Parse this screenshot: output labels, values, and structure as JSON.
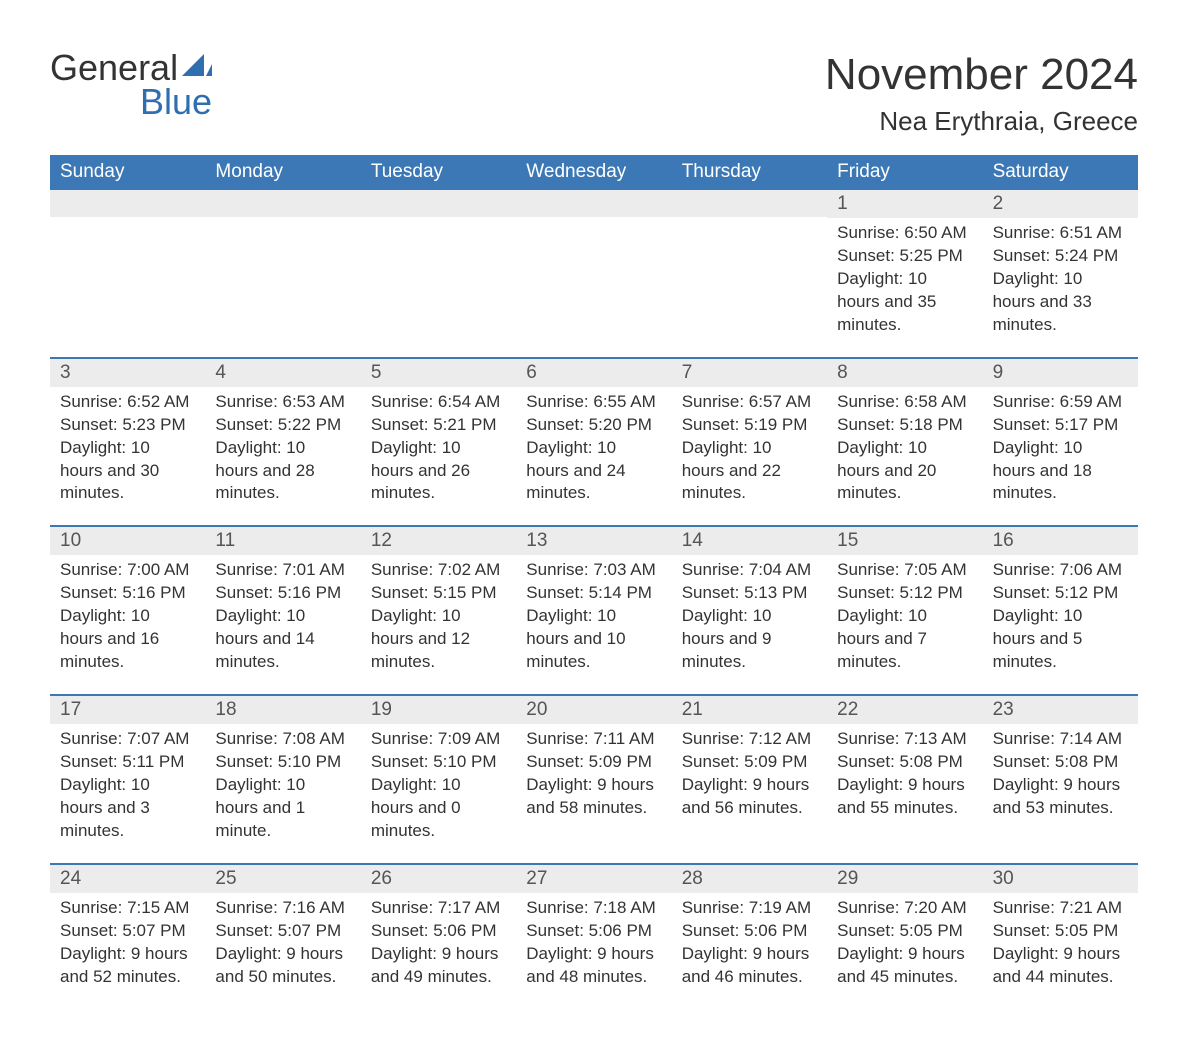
{
  "brand": {
    "text_top": "General",
    "text_bottom": "Blue",
    "accent_color": "#2f6fb0"
  },
  "title": "November 2024",
  "location": "Nea Erythraia, Greece",
  "colors": {
    "header_bg": "#3b78b5",
    "header_text": "#ffffff",
    "daynum_bg": "#ececec",
    "text": "#333333",
    "rule": "#3b78b5",
    "background": "#ffffff"
  },
  "typography": {
    "title_size": 44,
    "location_size": 26,
    "dayname_size": 19,
    "body_size": 17
  },
  "daynames": [
    "Sunday",
    "Monday",
    "Tuesday",
    "Wednesday",
    "Thursday",
    "Friday",
    "Saturday"
  ],
  "weeks": [
    [
      {
        "day": null
      },
      {
        "day": null
      },
      {
        "day": null
      },
      {
        "day": null
      },
      {
        "day": null
      },
      {
        "day": 1,
        "sunrise": "Sunrise: 6:50 AM",
        "sunset": "Sunset: 5:25 PM",
        "daylight": "Daylight: 10 hours and 35 minutes."
      },
      {
        "day": 2,
        "sunrise": "Sunrise: 6:51 AM",
        "sunset": "Sunset: 5:24 PM",
        "daylight": "Daylight: 10 hours and 33 minutes."
      }
    ],
    [
      {
        "day": 3,
        "sunrise": "Sunrise: 6:52 AM",
        "sunset": "Sunset: 5:23 PM",
        "daylight": "Daylight: 10 hours and 30 minutes."
      },
      {
        "day": 4,
        "sunrise": "Sunrise: 6:53 AM",
        "sunset": "Sunset: 5:22 PM",
        "daylight": "Daylight: 10 hours and 28 minutes."
      },
      {
        "day": 5,
        "sunrise": "Sunrise: 6:54 AM",
        "sunset": "Sunset: 5:21 PM",
        "daylight": "Daylight: 10 hours and 26 minutes."
      },
      {
        "day": 6,
        "sunrise": "Sunrise: 6:55 AM",
        "sunset": "Sunset: 5:20 PM",
        "daylight": "Daylight: 10 hours and 24 minutes."
      },
      {
        "day": 7,
        "sunrise": "Sunrise: 6:57 AM",
        "sunset": "Sunset: 5:19 PM",
        "daylight": "Daylight: 10 hours and 22 minutes."
      },
      {
        "day": 8,
        "sunrise": "Sunrise: 6:58 AM",
        "sunset": "Sunset: 5:18 PM",
        "daylight": "Daylight: 10 hours and 20 minutes."
      },
      {
        "day": 9,
        "sunrise": "Sunrise: 6:59 AM",
        "sunset": "Sunset: 5:17 PM",
        "daylight": "Daylight: 10 hours and 18 minutes."
      }
    ],
    [
      {
        "day": 10,
        "sunrise": "Sunrise: 7:00 AM",
        "sunset": "Sunset: 5:16 PM",
        "daylight": "Daylight: 10 hours and 16 minutes."
      },
      {
        "day": 11,
        "sunrise": "Sunrise: 7:01 AM",
        "sunset": "Sunset: 5:16 PM",
        "daylight": "Daylight: 10 hours and 14 minutes."
      },
      {
        "day": 12,
        "sunrise": "Sunrise: 7:02 AM",
        "sunset": "Sunset: 5:15 PM",
        "daylight": "Daylight: 10 hours and 12 minutes."
      },
      {
        "day": 13,
        "sunrise": "Sunrise: 7:03 AM",
        "sunset": "Sunset: 5:14 PM",
        "daylight": "Daylight: 10 hours and 10 minutes."
      },
      {
        "day": 14,
        "sunrise": "Sunrise: 7:04 AM",
        "sunset": "Sunset: 5:13 PM",
        "daylight": "Daylight: 10 hours and 9 minutes."
      },
      {
        "day": 15,
        "sunrise": "Sunrise: 7:05 AM",
        "sunset": "Sunset: 5:12 PM",
        "daylight": "Daylight: 10 hours and 7 minutes."
      },
      {
        "day": 16,
        "sunrise": "Sunrise: 7:06 AM",
        "sunset": "Sunset: 5:12 PM",
        "daylight": "Daylight: 10 hours and 5 minutes."
      }
    ],
    [
      {
        "day": 17,
        "sunrise": "Sunrise: 7:07 AM",
        "sunset": "Sunset: 5:11 PM",
        "daylight": "Daylight: 10 hours and 3 minutes."
      },
      {
        "day": 18,
        "sunrise": "Sunrise: 7:08 AM",
        "sunset": "Sunset: 5:10 PM",
        "daylight": "Daylight: 10 hours and 1 minute."
      },
      {
        "day": 19,
        "sunrise": "Sunrise: 7:09 AM",
        "sunset": "Sunset: 5:10 PM",
        "daylight": "Daylight: 10 hours and 0 minutes."
      },
      {
        "day": 20,
        "sunrise": "Sunrise: 7:11 AM",
        "sunset": "Sunset: 5:09 PM",
        "daylight": "Daylight: 9 hours and 58 minutes."
      },
      {
        "day": 21,
        "sunrise": "Sunrise: 7:12 AM",
        "sunset": "Sunset: 5:09 PM",
        "daylight": "Daylight: 9 hours and 56 minutes."
      },
      {
        "day": 22,
        "sunrise": "Sunrise: 7:13 AM",
        "sunset": "Sunset: 5:08 PM",
        "daylight": "Daylight: 9 hours and 55 minutes."
      },
      {
        "day": 23,
        "sunrise": "Sunrise: 7:14 AM",
        "sunset": "Sunset: 5:08 PM",
        "daylight": "Daylight: 9 hours and 53 minutes."
      }
    ],
    [
      {
        "day": 24,
        "sunrise": "Sunrise: 7:15 AM",
        "sunset": "Sunset: 5:07 PM",
        "daylight": "Daylight: 9 hours and 52 minutes."
      },
      {
        "day": 25,
        "sunrise": "Sunrise: 7:16 AM",
        "sunset": "Sunset: 5:07 PM",
        "daylight": "Daylight: 9 hours and 50 minutes."
      },
      {
        "day": 26,
        "sunrise": "Sunrise: 7:17 AM",
        "sunset": "Sunset: 5:06 PM",
        "daylight": "Daylight: 9 hours and 49 minutes."
      },
      {
        "day": 27,
        "sunrise": "Sunrise: 7:18 AM",
        "sunset": "Sunset: 5:06 PM",
        "daylight": "Daylight: 9 hours and 48 minutes."
      },
      {
        "day": 28,
        "sunrise": "Sunrise: 7:19 AM",
        "sunset": "Sunset: 5:06 PM",
        "daylight": "Daylight: 9 hours and 46 minutes."
      },
      {
        "day": 29,
        "sunrise": "Sunrise: 7:20 AM",
        "sunset": "Sunset: 5:05 PM",
        "daylight": "Daylight: 9 hours and 45 minutes."
      },
      {
        "day": 30,
        "sunrise": "Sunrise: 7:21 AM",
        "sunset": "Sunset: 5:05 PM",
        "daylight": "Daylight: 9 hours and 44 minutes."
      }
    ]
  ]
}
